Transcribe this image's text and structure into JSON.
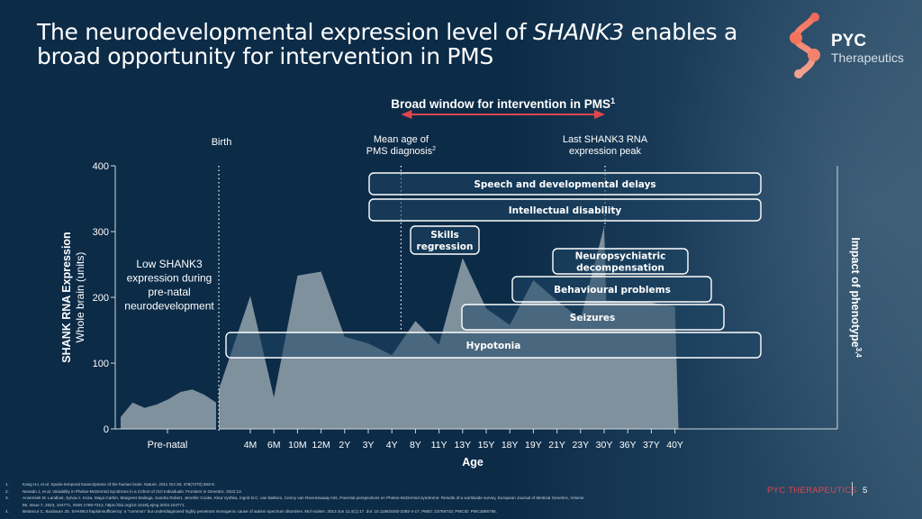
{
  "slide": {
    "title_part1": "The neurodevelopmental expression level of ",
    "title_italic": "SHANK3",
    "title_part2": " enables a",
    "title_line2": "broad opportunity for intervention in PMS",
    "logo": {
      "name": "PYC",
      "subtitle": "Therapeutics",
      "accent_color": "#f26a5b"
    },
    "footer_brand": "PYC THERAPEUTICS",
    "page_number": "5",
    "references": [
      {
        "num": "1.",
        "text": "Kang HJ, et al. Spatio-temporal transcriptome of the human brain. Nature. 2011 Oct 26; 478(7370):483-9."
      },
      {
        "num": "2.",
        "text": "Nevado J, et al. Variability in Phelan-McDermid Syndrome in a Cohort of 210 Individuals. Frontiers in Genetics. 2022;13."
      },
      {
        "num": "3.",
        "text": "Annemiek M. Landlust, Sylvia A. Koza, Maya Carbin, Margreet Walinga, Sandra Robert, Jennifer Cooke, Klea Vyshka, Ingrid D.C. van Balkom, Conny van Ravenswaaij-Arts, Parental perspectives on Phelan-McDermid syndrome: Results of a worldwide survey, European Journal of Medical Genetics, Volume"
      },
      {
        "num": "",
        "text": "66, Issue 7, 2023, 104771, ISSN 1769-7212, https://doi.org/10.1016/j.ejmg.2023.104771."
      },
      {
        "num": "4.",
        "text": "Betancur C, Buxbaum JD. SHANK3 haploinsufficiency: a \"common\" but underdiagnosed highly penetrant monogenic cause of autism spectrum disorders. Mol Autism. 2013 Jun 11;4(1):17. doi: 10.1186/2040-2392-4-17. PMID: 23758743; PMCID: PMC3695795."
      }
    ]
  },
  "chart_data": {
    "type": "area",
    "title": "Broad window for intervention in PMS",
    "title_superscript": "1",
    "ylabel": "SHANK RNA Expression",
    "ylabel_sub": "Whole brain (units)",
    "xlabel": "Age",
    "right_label": "Impact of phenotype",
    "right_label_superscript": "3,4",
    "ylim": [
      0,
      400
    ],
    "yticks": [
      0,
      100,
      200,
      300,
      400
    ],
    "prenatal_label": "Pre-natal",
    "prenatal_note": [
      "Low SHANK3",
      "expression during",
      "pre-natal",
      "neurodevelopment"
    ],
    "prenatal_values": [
      18,
      40,
      32,
      37,
      45,
      56,
      60,
      52,
      40
    ],
    "categories": [
      "4M",
      "6M",
      "10M",
      "12M",
      "2Y",
      "3Y",
      "4Y",
      "8Y",
      "11Y",
      "13Y",
      "15Y",
      "18Y",
      "19Y",
      "21Y",
      "23Y",
      "30Y",
      "36Y",
      "37Y",
      "40Y"
    ],
    "birth_value": 60,
    "values": [
      202,
      48,
      233,
      239,
      140,
      130,
      112,
      164,
      128,
      260,
      183,
      158,
      226,
      195,
      167,
      308,
      195,
      192,
      186
    ],
    "annotations": {
      "birth": "Birth",
      "diagnosis": [
        "Mean age of",
        "PMS diagnosis"
      ],
      "diagnosis_superscript": "2",
      "diagnosis_at": "8Y",
      "last_peak": [
        "Last SHANK3 RNA",
        "expression peak"
      ],
      "last_peak_at": "30Y"
    },
    "phenotypes": [
      {
        "label": "Speech and developmental delays",
        "from": "2Y",
        "to": "36Y"
      },
      {
        "label": "Intellectual disability",
        "from": "2Y",
        "to": "36Y"
      },
      {
        "label": "Skills regression",
        "from": "3Y",
        "to": "8Y"
      },
      {
        "label": "Neuropsychiatric decompensation",
        "from": "15Y",
        "to": "23Y"
      },
      {
        "label": "Behavioural problems",
        "from": "11Y",
        "to": "23Y"
      },
      {
        "label": "Seizures",
        "from": "8Y",
        "to": "23Y"
      },
      {
        "label": "Hypotonia",
        "from": "4M",
        "to": "36Y"
      }
    ],
    "colors": {
      "area": "#7f919d",
      "arrow": "#e0474c",
      "box_border": "#ffffff",
      "box_fill": "#1d4664"
    }
  }
}
